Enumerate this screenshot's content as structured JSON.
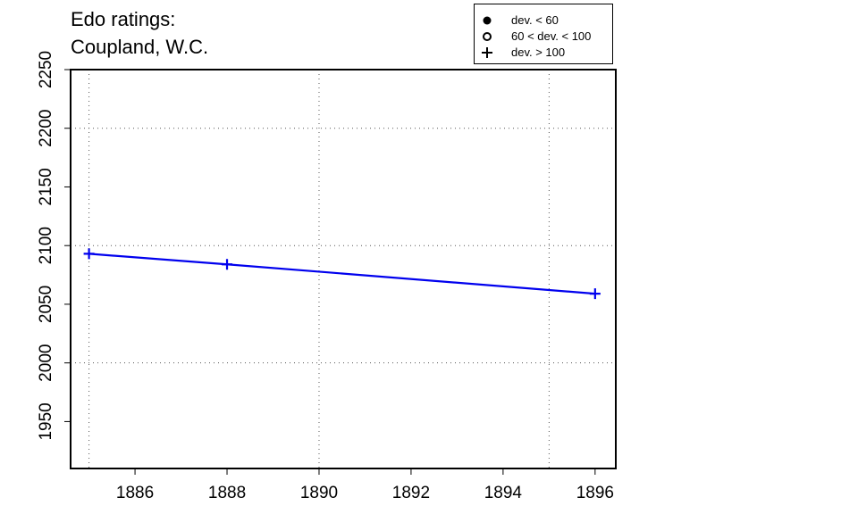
{
  "chart_data": {
    "type": "line",
    "title": [
      "Edo ratings:",
      "Coupland, W.C."
    ],
    "x": [
      1885,
      1888,
      1896
    ],
    "series": [
      {
        "values": [
          2093,
          2084,
          2059
        ],
        "color": "#0000ee",
        "marker": "plus"
      }
    ],
    "xlim": [
      1884.6,
      1896.45
    ],
    "ylim": [
      1910,
      2250
    ],
    "xticks": [
      1886,
      1888,
      1890,
      1892,
      1894,
      1896
    ],
    "yticks": [
      1950,
      2000,
      2050,
      2100,
      2150,
      2200,
      2250
    ],
    "xgrid": [
      1885,
      1890,
      1895
    ],
    "ygrid": [
      2000,
      2100,
      2200
    ],
    "grid": true,
    "legend": {
      "placement": "top-right",
      "entries": [
        {
          "symbol": "filled-circle",
          "label": "dev. < 60"
        },
        {
          "symbol": "open-circle",
          "label": "60 < dev. < 100"
        },
        {
          "symbol": "plus",
          "label": "dev. > 100"
        }
      ]
    }
  }
}
